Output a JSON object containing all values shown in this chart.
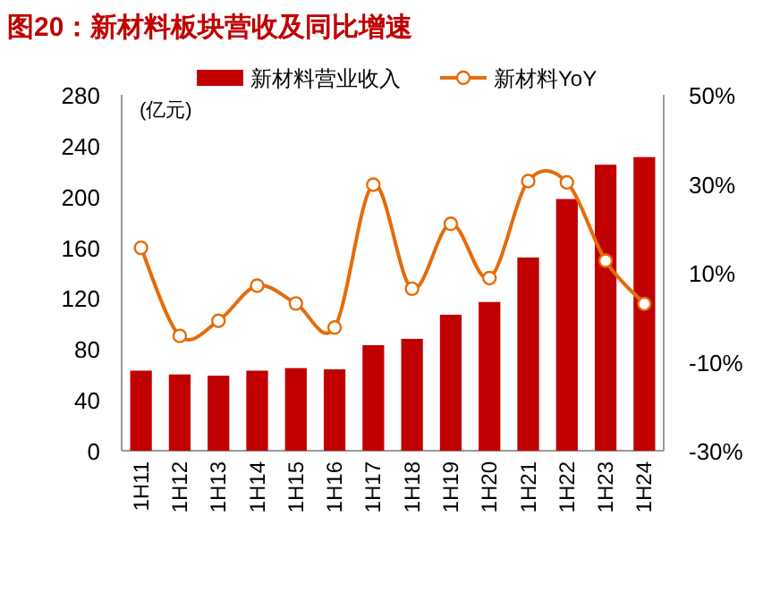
{
  "chart_data": {
    "type": "bar",
    "title": "图20：新材料板块营收及同比增速",
    "ylabel": "(亿元)",
    "categories": [
      "1H11",
      "1H12",
      "1H13",
      "1H14",
      "1H15",
      "1H16",
      "1H17",
      "1H18",
      "1H19",
      "1H20",
      "1H21",
      "1H22",
      "1H23",
      "1H24"
    ],
    "series": [
      {
        "name": "新材料营业收入",
        "color": "#c00000",
        "values": [
          63,
          60,
          59,
          63,
          65,
          64,
          83,
          88,
          107,
          117,
          152,
          198,
          225,
          231
        ]
      },
      {
        "type": "line",
        "name": "新材料YoY",
        "color": "#e46c0a",
        "axis": "y2",
        "marker": "circle",
        "values": [
          15.6,
          -4.2,
          -0.8,
          7.1,
          3.1,
          -2.3,
          29.8,
          6.4,
          21,
          8.8,
          30.6,
          30.3,
          12.7,
          3
        ]
      }
    ],
    "ylim": [
      0,
      280
    ],
    "yticks": [
      0,
      40,
      80,
      120,
      160,
      200,
      240,
      280
    ],
    "y2lim": [
      -30,
      50
    ],
    "y2ticks": [
      {
        "value": -30,
        "label": "-30%"
      },
      {
        "value": -10,
        "label": "-10%"
      },
      {
        "value": 10,
        "label": "10%"
      },
      {
        "value": 30,
        "label": "30%"
      },
      {
        "value": 50,
        "label": "50%"
      }
    ],
    "legend": "top",
    "grid": false
  }
}
